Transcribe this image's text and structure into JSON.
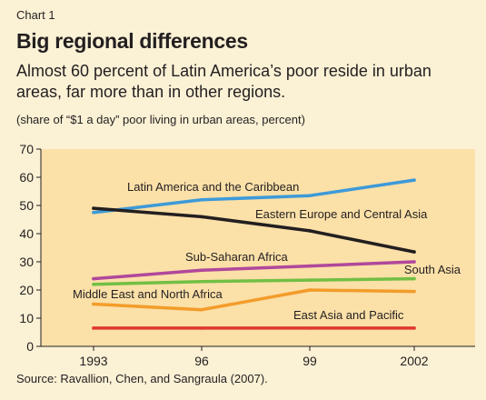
{
  "header": {
    "eyebrow": "Chart 1",
    "title": "Big regional differences",
    "subtitle": "Almost 60 percent of Latin America’s poor reside in urban areas, far more than in other regions.",
    "note": "(share of “$1 a day” poor living in urban areas, percent)"
  },
  "source": "Source: Ravallion, Chen, and Sangraula (2007).",
  "colors": {
    "plot_bg": "#fbe0a8",
    "page_bg": "#fbf1d5",
    "axis": "#231f20"
  },
  "chart_data": {
    "type": "line",
    "x": [
      "1993",
      "96",
      "99",
      "2002"
    ],
    "ylim": [
      0,
      70
    ],
    "yticks": [
      0,
      10,
      20,
      30,
      40,
      50,
      60,
      70
    ],
    "grid": false,
    "legend": "inline labels",
    "series": [
      {
        "name": "Latin America and the Caribbean",
        "color": "#3d9ad8",
        "values": [
          47.5,
          52,
          53.5,
          59
        ]
      },
      {
        "name": "Eastern Europe and Central Asia",
        "color": "#231f20",
        "values": [
          49,
          46,
          41,
          33.5
        ]
      },
      {
        "name": "Sub-Saharan Africa",
        "color": "#b0489b",
        "values": [
          24,
          27,
          28.5,
          30
        ]
      },
      {
        "name": "South Asia",
        "color": "#72bf44",
        "values": [
          22,
          23,
          23.5,
          24
        ]
      },
      {
        "name": "Middle East and North Africa",
        "color": "#f39c2a",
        "values": [
          15,
          13,
          20,
          19.5
        ]
      },
      {
        "name": "East Asia and Pacific",
        "color": "#e0382e",
        "values": [
          6.5,
          6.5,
          6.5,
          6.5
        ]
      }
    ]
  }
}
